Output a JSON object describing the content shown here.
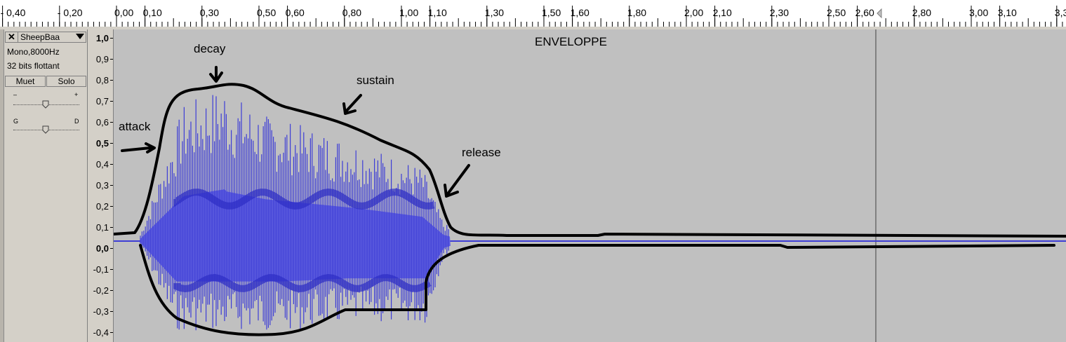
{
  "ruler": {
    "labels": [
      "- 0,40",
      "- 0,20",
      "0,00",
      "0,10",
      "0,30",
      "0,50",
      "0,60",
      "0,80",
      "1,00",
      "1,10",
      "1,30",
      "1,50",
      "1,60",
      "1,80",
      "2,00",
      "2,10",
      "2,30",
      "2,50",
      "2,60",
      "2,80",
      "3,00",
      "3,10",
      "3,3"
    ]
  },
  "track": {
    "name": "SheepBaa",
    "format": "Mono,8000Hz",
    "sample_format": "32 bits flottant",
    "mute_label": "Muet",
    "solo_label": "Solo",
    "gain_minus": "–",
    "gain_plus": "+",
    "pan_left": "G",
    "pan_right": "D"
  },
  "vertical_ruler": {
    "labels": [
      "1,0",
      "0,9",
      "0,8",
      "0,7",
      "0,6",
      "0,5",
      "0,4",
      "0,3",
      "0,2",
      "0,1",
      "0,0",
      "-0,1",
      "-0,2",
      "-0,3",
      "-0,4"
    ]
  },
  "annotations": {
    "title": "ENVELOPPE",
    "attack": "attack",
    "decay": "decay",
    "sustain": "sustain",
    "release": "release"
  },
  "colors": {
    "waveform": "#3d3dd6",
    "waveform_light": "#6464e0",
    "background": "#c0c0c0",
    "envelope": "#000000"
  }
}
